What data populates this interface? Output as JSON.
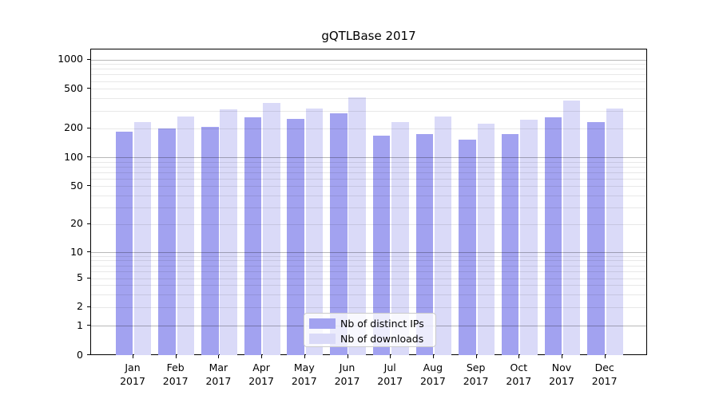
{
  "chart_data": {
    "type": "bar",
    "title": "gQTLBase 2017",
    "categories": [
      "Jan",
      "Feb",
      "Mar",
      "Apr",
      "May",
      "Jun",
      "Jul",
      "Aug",
      "Sep",
      "Oct",
      "Nov",
      "Dec"
    ],
    "year": "2017",
    "series": [
      {
        "name": "Nb of distinct IPs",
        "color": "#a2a2f0",
        "values": [
          182,
          197,
          205,
          256,
          248,
          281,
          166,
          175,
          151,
          174,
          256,
          232
        ]
      },
      {
        "name": "Nb of downloads",
        "color": "#dadaf8",
        "values": [
          229,
          263,
          308,
          360,
          314,
          408,
          231,
          264,
          222,
          244,
          379,
          317
        ]
      }
    ],
    "xlabel": "",
    "ylabel": "",
    "yscale": "symlog",
    "yticks": [
      0,
      1,
      2,
      5,
      10,
      20,
      50,
      100,
      200,
      500,
      1000
    ],
    "ylim": [
      0,
      1260
    ],
    "grid": true,
    "grid_minor_subs": [
      2,
      3,
      4,
      5,
      6,
      7,
      8,
      9
    ],
    "legend_position": "inside-bottom-center"
  }
}
